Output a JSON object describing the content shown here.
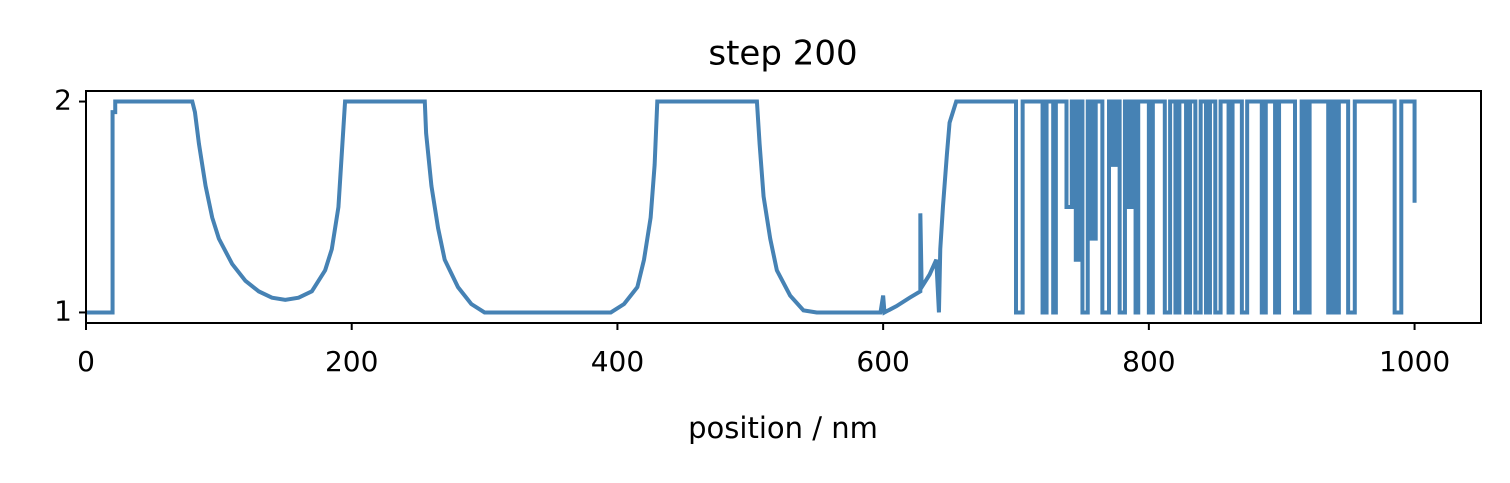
{
  "chart_data": {
    "type": "line",
    "title": "step 200",
    "xlabel": "position / nm",
    "color": "#4682b4",
    "xlim": [
      0,
      1050
    ],
    "ylim": [
      0.95,
      2.05
    ],
    "xticks": [
      0,
      200,
      400,
      600,
      800,
      1000
    ],
    "yticks": [
      1,
      2
    ],
    "x": [
      0,
      20,
      20,
      22,
      22,
      80,
      82,
      85,
      90,
      95,
      100,
      110,
      120,
      130,
      140,
      150,
      160,
      170,
      180,
      185,
      190,
      193,
      195,
      255,
      256,
      260,
      265,
      270,
      280,
      290,
      300,
      395,
      405,
      415,
      420,
      425,
      428,
      430,
      505,
      507,
      510,
      515,
      520,
      530,
      540,
      550,
      598,
      600,
      601,
      610,
      620,
      628,
      628,
      629,
      635,
      640,
      642,
      643,
      645,
      648,
      650,
      655,
      700,
      700,
      705,
      705,
      720,
      720,
      723,
      723,
      728,
      728,
      730,
      730,
      738,
      738,
      742,
      742,
      745,
      745,
      748,
      748,
      750,
      750,
      754,
      754,
      757,
      757,
      760,
      760,
      765,
      765,
      770,
      770,
      772,
      772,
      775,
      775,
      778,
      778,
      782,
      782,
      784,
      784,
      787,
      787,
      790,
      790,
      792,
      792,
      800,
      800,
      803,
      803,
      812,
      812,
      816,
      816,
      820,
      820,
      823,
      823,
      828,
      828,
      831,
      831,
      835,
      835,
      839,
      839,
      843,
      843,
      846,
      846,
      850,
      850,
      854,
      854,
      860,
      860,
      863,
      863,
      870,
      870,
      874,
      874,
      885,
      885,
      888,
      888,
      895,
      895,
      898,
      898,
      910,
      910,
      915,
      915,
      918,
      918,
      921,
      921,
      935,
      935,
      938,
      938,
      940,
      940,
      943,
      943,
      950,
      950,
      955,
      955,
      985,
      985,
      990,
      990,
      1000,
      1000
    ],
    "values": [
      1,
      1,
      1.95,
      1.95,
      2,
      2,
      1.95,
      1.8,
      1.6,
      1.45,
      1.35,
      1.23,
      1.15,
      1.1,
      1.07,
      1.06,
      1.07,
      1.1,
      1.2,
      1.3,
      1.5,
      1.8,
      2,
      2,
      1.85,
      1.6,
      1.4,
      1.25,
      1.12,
      1.04,
      1,
      1,
      1.04,
      1.12,
      1.25,
      1.45,
      1.7,
      2,
      2,
      1.8,
      1.55,
      1.35,
      1.2,
      1.08,
      1.01,
      1,
      1,
      1.08,
      1,
      1.03,
      1.07,
      1.1,
      1.47,
      1.12,
      1.18,
      1.25,
      1,
      1.3,
      1.5,
      1.75,
      1.9,
      2,
      2,
      1,
      1,
      2,
      2,
      1,
      1,
      2,
      2,
      1,
      1,
      2,
      2,
      1.5,
      1.5,
      2,
      2,
      1.25,
      1.25,
      2,
      2,
      1,
      1,
      2,
      2,
      1.35,
      1.35,
      2,
      2,
      1,
      1,
      2,
      2,
      1.7,
      1.7,
      2,
      2,
      1,
      1,
      2,
      2,
      1.5,
      1.5,
      2,
      2,
      1,
      1,
      2,
      2,
      1,
      1,
      2,
      2,
      1,
      1,
      2,
      2,
      1,
      1,
      2,
      2,
      1,
      1,
      2,
      2,
      1,
      1,
      2,
      2,
      1,
      1,
      2,
      2,
      1,
      1,
      2,
      2,
      1,
      1,
      2,
      2,
      1,
      1,
      2,
      2,
      1,
      1,
      2,
      2,
      1,
      1,
      2,
      2,
      1,
      1,
      2,
      2,
      1,
      1,
      2,
      2,
      1,
      1,
      2,
      2,
      1,
      1,
      2,
      2,
      1,
      1,
      2,
      2,
      1,
      1,
      2,
      2,
      1.52
    ]
  }
}
